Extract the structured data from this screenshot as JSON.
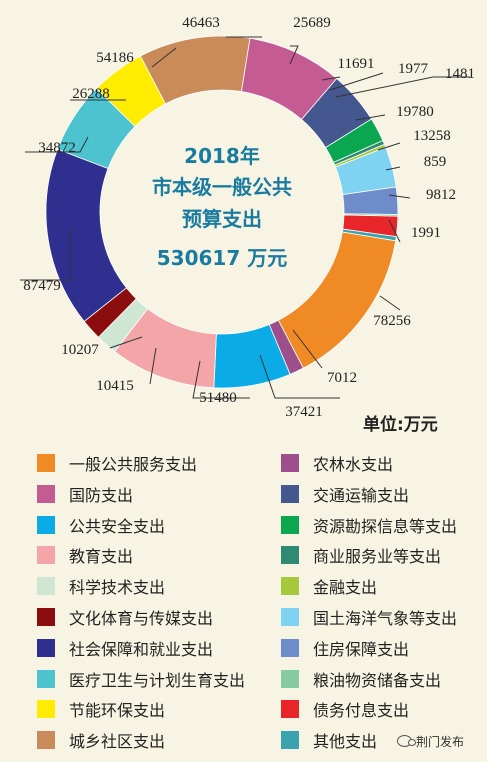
{
  "chart_data": {
    "type": "pie",
    "title": "2018年",
    "subtitle_lines": [
      "市本级一般公共",
      "预算支出"
    ],
    "total_label": "530617 万元",
    "unit": "单位:万元",
    "legend_placement": "bottom",
    "slices": [
      {
        "name": "一般公共服务支出",
        "value": 78256,
        "color": "#f08a24"
      },
      {
        "name": "农林水支出",
        "value": 7012,
        "color": "#9c4f8a"
      },
      {
        "name": "公共安全支出",
        "value": 37421,
        "color": "#0aabe6"
      },
      {
        "name": "教育支出",
        "value": 51480,
        "color": "#f4a5a8"
      },
      {
        "name": "科学技术支出",
        "value": 10415,
        "color": "#cfe6d3"
      },
      {
        "name": "文化体育与传媒支出",
        "value": 10207,
        "color": "#8b0d0d"
      },
      {
        "name": "社会保障和就业支出",
        "value": 87479,
        "color": "#2f2f8f"
      },
      {
        "name": "医疗卫生与计划生育支出",
        "value": 34872,
        "color": "#4cc3cf"
      },
      {
        "name": "节能环保支出",
        "value": 26288,
        "color": "#ffec00"
      },
      {
        "name": "城乡社区支出",
        "value": 54186,
        "color": "#c98b5a"
      },
      {
        "name": "国防支出",
        "value": 46463,
        "color": "#c45b92"
      },
      {
        "name": "交通运输支出",
        "value": 25689,
        "color": "#44588f"
      },
      {
        "name": "资源勘探信息等支出",
        "value": 11691,
        "color": "#0aa650"
      },
      {
        "name": "商业服务业等支出",
        "value": 1977,
        "color": "#2f8a74"
      },
      {
        "name": "金融支出",
        "value": 1481,
        "color": "#a6c83c"
      },
      {
        "name": "国土海洋气象等支出",
        "value": 19780,
        "color": "#7fd3f2"
      },
      {
        "name": "住房保障支出",
        "value": 13258,
        "color": "#6e8cc9"
      },
      {
        "name": "粮油物资储备支出",
        "value": 859,
        "color": "#86cba0"
      },
      {
        "name": "债务付息支出",
        "value": 9812,
        "color": "#e8262a"
      },
      {
        "name": "其他支出",
        "value": 1991,
        "color": "#3aa3ad"
      }
    ]
  },
  "watermark": {
    "icon": "wechat-icon",
    "text": "荆门发布"
  }
}
